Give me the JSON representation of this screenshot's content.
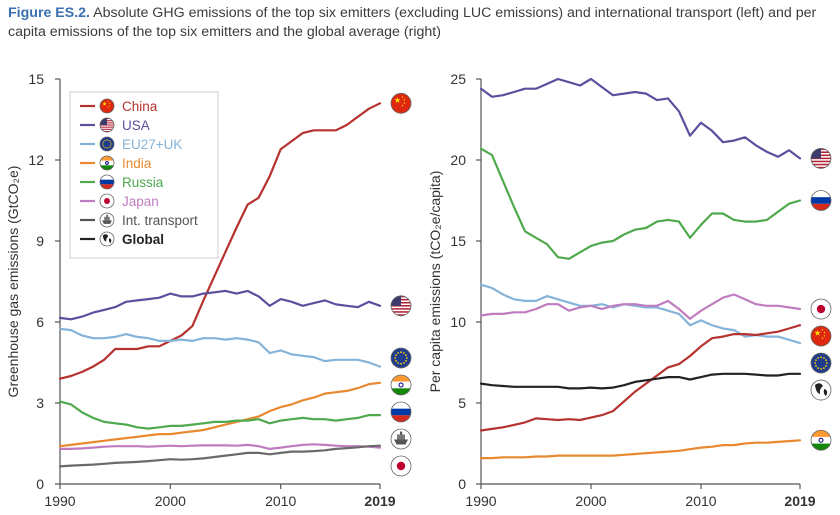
{
  "caption": {
    "figure_label": "Figure ES.2.",
    "text": " Absolute GHG emissions of the top six emitters (excluding LUC emissions) and international transport (left) and per capita emissions of the top six emitters and the global average (right)"
  },
  "chart_data": [
    {
      "type": "line",
      "title": "",
      "ylabel": "Greenhouse gas emissions (GtCO₂e)",
      "xlabel": "",
      "xlim": [
        1990,
        2019
      ],
      "ylim": [
        0,
        15
      ],
      "xticks": [
        1990,
        2000,
        2010,
        2019
      ],
      "xtick_labels": [
        "1990",
        "2000",
        "2010",
        "2019"
      ],
      "yticks": [
        0,
        3,
        6,
        9,
        12,
        15
      ],
      "ytick_labels": [
        "0",
        "3",
        "6",
        "9",
        "12",
        "15"
      ],
      "legend_position": "top-left",
      "x": [
        1990,
        1991,
        1992,
        1993,
        1994,
        1995,
        1996,
        1997,
        1998,
        1999,
        2000,
        2001,
        2002,
        2003,
        2004,
        2005,
        2006,
        2007,
        2008,
        2009,
        2010,
        2011,
        2012,
        2013,
        2014,
        2015,
        2016,
        2017,
        2018,
        2019
      ],
      "series": [
        {
          "name": "China",
          "color": "#b5322e",
          "icon": "china-flag-icon",
          "values": [
            3.9,
            4.0,
            4.15,
            4.35,
            4.6,
            5.0,
            5.0,
            5.0,
            5.1,
            5.1,
            5.3,
            5.5,
            5.85,
            6.8,
            7.7,
            8.6,
            9.5,
            10.35,
            10.6,
            11.4,
            12.4,
            12.7,
            13.0,
            13.1,
            13.1,
            13.1,
            13.3,
            13.6,
            13.9,
            14.1
          ]
        },
        {
          "name": "USA",
          "color": "#5b4f9e",
          "icon": "usa-flag-icon",
          "values": [
            6.15,
            6.1,
            6.2,
            6.35,
            6.45,
            6.55,
            6.75,
            6.8,
            6.85,
            6.9,
            7.05,
            6.95,
            6.95,
            7.05,
            7.1,
            7.15,
            7.05,
            7.15,
            6.95,
            6.6,
            6.85,
            6.75,
            6.6,
            6.7,
            6.8,
            6.65,
            6.6,
            6.55,
            6.75,
            6.6
          ]
        },
        {
          "name": "EU27+UK",
          "color": "#86b3d8",
          "icon": "eu-flag-icon",
          "values": [
            5.75,
            5.7,
            5.5,
            5.4,
            5.4,
            5.45,
            5.55,
            5.45,
            5.4,
            5.3,
            5.3,
            5.35,
            5.3,
            5.4,
            5.4,
            5.35,
            5.4,
            5.35,
            5.25,
            4.85,
            4.95,
            4.8,
            4.75,
            4.7,
            4.55,
            4.6,
            4.6,
            4.6,
            4.5,
            4.35
          ]
        },
        {
          "name": "India",
          "color": "#e8892f",
          "icon": "india-flag-icon",
          "values": [
            1.4,
            1.45,
            1.5,
            1.55,
            1.6,
            1.65,
            1.7,
            1.75,
            1.8,
            1.85,
            1.85,
            1.9,
            1.95,
            2.0,
            2.1,
            2.2,
            2.3,
            2.4,
            2.5,
            2.7,
            2.85,
            2.95,
            3.1,
            3.2,
            3.35,
            3.4,
            3.45,
            3.55,
            3.7,
            3.75
          ]
        },
        {
          "name": "Russia",
          "color": "#4fa94d",
          "icon": "russia-flag-icon",
          "values": [
            3.05,
            2.95,
            2.65,
            2.45,
            2.3,
            2.25,
            2.2,
            2.1,
            2.05,
            2.1,
            2.15,
            2.15,
            2.2,
            2.25,
            2.3,
            2.3,
            2.35,
            2.35,
            2.4,
            2.25,
            2.35,
            2.4,
            2.45,
            2.4,
            2.4,
            2.35,
            2.4,
            2.45,
            2.55,
            2.55
          ]
        },
        {
          "name": "Japan",
          "color": "#c07cc0",
          "icon": "japan-flag-icon",
          "values": [
            1.3,
            1.3,
            1.32,
            1.35,
            1.38,
            1.4,
            1.4,
            1.4,
            1.38,
            1.4,
            1.42,
            1.4,
            1.42,
            1.43,
            1.43,
            1.43,
            1.42,
            1.45,
            1.4,
            1.3,
            1.35,
            1.4,
            1.45,
            1.47,
            1.45,
            1.42,
            1.4,
            1.4,
            1.38,
            1.35
          ]
        },
        {
          "name": "Int. transport",
          "color": "#6a6a6a",
          "icon": "ship-icon",
          "values": [
            0.65,
            0.68,
            0.7,
            0.72,
            0.75,
            0.78,
            0.8,
            0.82,
            0.85,
            0.88,
            0.92,
            0.9,
            0.92,
            0.95,
            1.0,
            1.05,
            1.1,
            1.15,
            1.15,
            1.1,
            1.15,
            1.2,
            1.2,
            1.22,
            1.25,
            1.3,
            1.33,
            1.36,
            1.4,
            1.42
          ]
        }
      ]
    },
    {
      "type": "line",
      "title": "",
      "ylabel": "Per capita emissions (tCO₂e/capita)",
      "xlabel": "",
      "xlim": [
        1990,
        2019
      ],
      "ylim": [
        0,
        25
      ],
      "xticks": [
        1990,
        2000,
        2010,
        2019
      ],
      "xtick_labels": [
        "1990",
        "2000",
        "2010",
        "2019"
      ],
      "yticks": [
        0,
        5,
        10,
        15,
        20,
        25
      ],
      "ytick_labels": [
        "0",
        "5",
        "10",
        "15",
        "20",
        "25"
      ],
      "x": [
        1990,
        1991,
        1992,
        1993,
        1994,
        1995,
        1996,
        1997,
        1998,
        1999,
        2000,
        2001,
        2002,
        2003,
        2004,
        2005,
        2006,
        2007,
        2008,
        2009,
        2010,
        2011,
        2012,
        2013,
        2014,
        2015,
        2016,
        2017,
        2018,
        2019
      ],
      "series": [
        {
          "name": "USA",
          "color": "#5b4f9e",
          "icon": "usa-flag-icon",
          "values": [
            24.4,
            23.9,
            24.0,
            24.2,
            24.4,
            24.4,
            24.7,
            25.0,
            24.8,
            24.6,
            25.0,
            24.5,
            24.0,
            24.1,
            24.2,
            24.1,
            23.7,
            23.8,
            23.0,
            21.5,
            22.3,
            21.8,
            21.1,
            21.2,
            21.4,
            20.9,
            20.5,
            20.2,
            20.6,
            20.1
          ]
        },
        {
          "name": "Russia",
          "color": "#4fa94d",
          "icon": "russia-flag-icon",
          "values": [
            20.7,
            20.3,
            18.7,
            17.1,
            15.6,
            15.2,
            14.8,
            14.0,
            13.9,
            14.3,
            14.7,
            14.9,
            15.0,
            15.4,
            15.7,
            15.8,
            16.2,
            16.3,
            16.2,
            15.2,
            16.0,
            16.7,
            16.7,
            16.3,
            16.2,
            16.2,
            16.3,
            16.8,
            17.3,
            17.5
          ]
        },
        {
          "name": "EU27+UK",
          "color": "#86b3d8",
          "icon": "eu-flag-icon",
          "values": [
            12.3,
            12.1,
            11.7,
            11.4,
            11.3,
            11.3,
            11.6,
            11.4,
            11.2,
            11.0,
            11.0,
            11.1,
            10.9,
            11.1,
            11.0,
            10.9,
            10.9,
            10.7,
            10.5,
            9.8,
            10.1,
            9.8,
            9.6,
            9.5,
            9.1,
            9.2,
            9.1,
            9.1,
            8.9,
            8.7
          ]
        },
        {
          "name": "Japan",
          "color": "#c07cc0",
          "icon": "japan-flag-icon",
          "values": [
            10.4,
            10.5,
            10.5,
            10.6,
            10.6,
            10.8,
            11.1,
            11.1,
            10.7,
            10.9,
            11.0,
            10.8,
            11.0,
            11.1,
            11.1,
            11.0,
            11.0,
            11.3,
            10.8,
            10.2,
            10.7,
            11.1,
            11.5,
            11.7,
            11.4,
            11.1,
            11.0,
            11.0,
            10.9,
            10.8
          ]
        },
        {
          "name": "China",
          "color": "#b5322e",
          "icon": "china-flag-icon",
          "values": [
            3.3,
            3.4,
            3.5,
            3.65,
            3.8,
            4.05,
            4.0,
            3.95,
            4.0,
            3.95,
            4.1,
            4.25,
            4.5,
            5.1,
            5.7,
            6.2,
            6.7,
            7.2,
            7.4,
            7.9,
            8.5,
            9.0,
            9.1,
            9.25,
            9.25,
            9.2,
            9.3,
            9.4,
            9.6,
            9.8
          ]
        },
        {
          "name": "Global",
          "color": "#222222",
          "icon": "globe-icon",
          "values": [
            6.2,
            6.1,
            6.05,
            6.0,
            6.0,
            6.0,
            6.0,
            6.0,
            5.9,
            5.9,
            5.95,
            5.9,
            5.95,
            6.1,
            6.3,
            6.4,
            6.5,
            6.6,
            6.6,
            6.45,
            6.6,
            6.75,
            6.8,
            6.8,
            6.8,
            6.75,
            6.7,
            6.7,
            6.8,
            6.8
          ]
        },
        {
          "name": "India",
          "color": "#e8892f",
          "icon": "india-flag-icon",
          "values": [
            1.6,
            1.6,
            1.65,
            1.65,
            1.65,
            1.7,
            1.7,
            1.75,
            1.75,
            1.75,
            1.75,
            1.75,
            1.75,
            1.8,
            1.85,
            1.9,
            1.95,
            2.0,
            2.05,
            2.15,
            2.25,
            2.3,
            2.4,
            2.4,
            2.5,
            2.55,
            2.55,
            2.6,
            2.65,
            2.7
          ]
        }
      ]
    }
  ],
  "legend": [
    {
      "name": "China",
      "color": "#b5322e",
      "icon": "china-flag-icon"
    },
    {
      "name": "USA",
      "color": "#5b4f9e",
      "icon": "usa-flag-icon"
    },
    {
      "name": "EU27+UK",
      "color": "#86b3d8",
      "icon": "eu-flag-icon"
    },
    {
      "name": "India",
      "color": "#e8892f",
      "icon": "india-flag-icon"
    },
    {
      "name": "Russia",
      "color": "#4fa94d",
      "icon": "russia-flag-icon"
    },
    {
      "name": "Japan",
      "color": "#c07cc0",
      "icon": "japan-flag-icon"
    },
    {
      "name": "Int. transport",
      "color": "#555555",
      "icon": "ship-icon"
    },
    {
      "name": "Global",
      "color": "#222222",
      "icon": "globe-icon",
      "bold": true
    }
  ]
}
